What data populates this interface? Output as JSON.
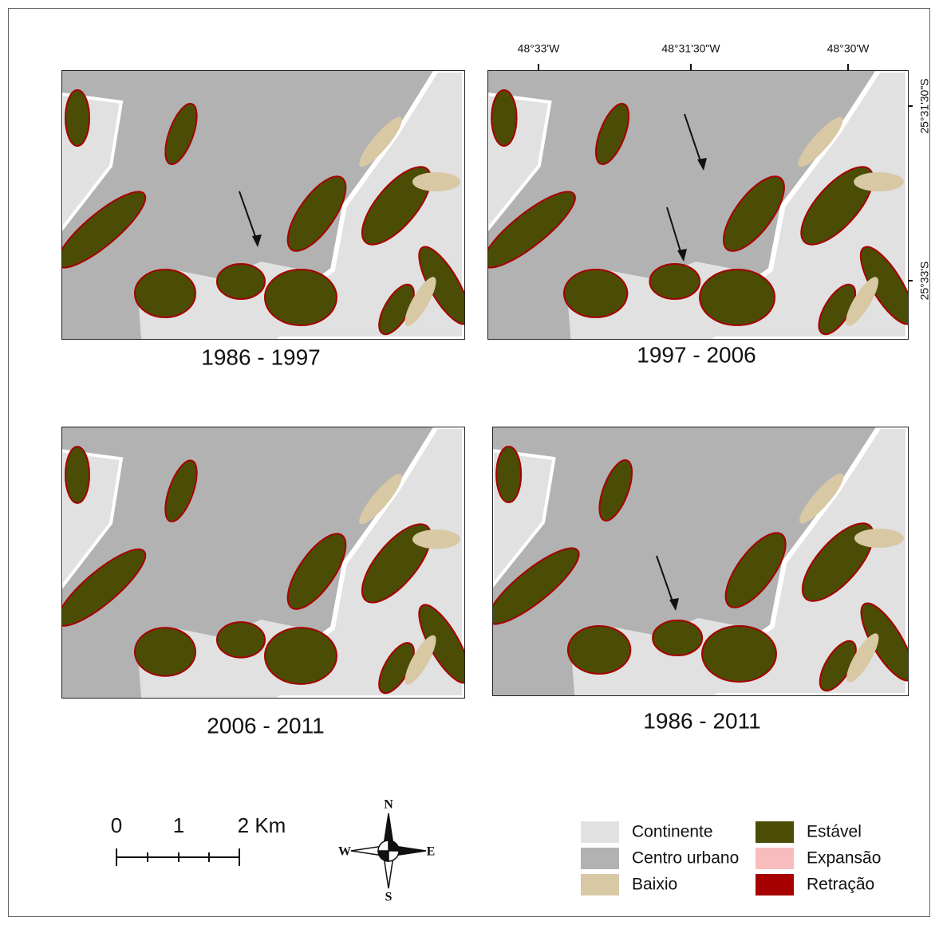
{
  "panels": [
    {
      "label": "1986 - 1997"
    },
    {
      "label": "1997 - 2006"
    },
    {
      "label": "2006 - 2011"
    },
    {
      "label": "1986 - 2011"
    }
  ],
  "coordinates": {
    "longitude": [
      "48°33'W",
      "48°31'30\"W",
      "48°30'W"
    ],
    "latitude": [
      "25°31'30\"S",
      "25°33'S"
    ]
  },
  "scale_bar": {
    "labels": [
      "0",
      "1",
      "2 Km"
    ]
  },
  "compass": {
    "north": "N",
    "south": "S",
    "east": "E",
    "west": "W"
  },
  "legend": [
    {
      "label": "Continente",
      "color": "#e1e1e1"
    },
    {
      "label": "Centro urbano",
      "color": "#b2b2b2"
    },
    {
      "label": "Baixio",
      "color": "#d8c8a4"
    },
    {
      "label": "Estável",
      "color": "#4b4d06"
    },
    {
      "label": "Expansão",
      "color": "#f9bcbc"
    },
    {
      "label": "Retração",
      "color": "#a60000"
    }
  ]
}
